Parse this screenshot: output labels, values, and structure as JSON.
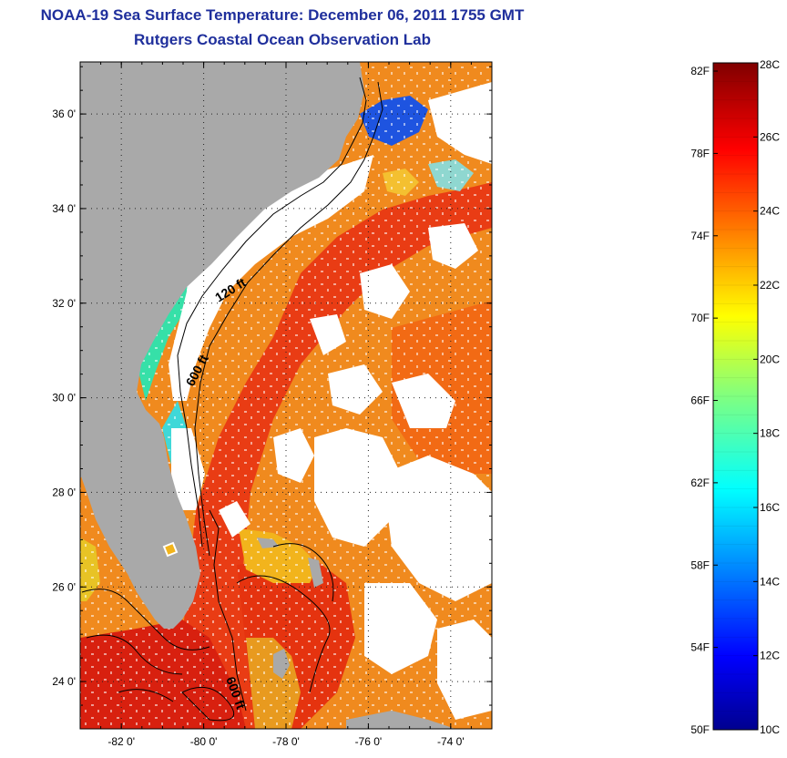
{
  "title_line1": "NOAA-19 Sea Surface Temperature:  December 06, 2011 1755 GMT",
  "title_line2": "Rutgers Coastal Ocean Observation Lab",
  "colors": {
    "land": "#a9a9a9",
    "cloud": "#ffffff",
    "title": "#1f2f9c"
  },
  "map": {
    "lat_ticks": [
      "36 0'",
      "34 0'",
      "32 0'",
      "30 0'",
      "28 0'",
      "26 0'",
      "24 0'"
    ],
    "lat_values": [
      36,
      34,
      32,
      30,
      28,
      26,
      24
    ],
    "lon_ticks": [
      "-82 0'",
      "-80 0'",
      "-78 0'",
      "-76 0'",
      "-74 0'"
    ],
    "lon_values": [
      -82,
      -80,
      -78,
      -76,
      -74
    ],
    "lat_range": [
      23.0,
      37.1
    ],
    "lon_range": [
      -83.0,
      -73.0
    ],
    "contour_labels": [
      "120 ft",
      "600 ft",
      "600 ft"
    ]
  },
  "colorbar": {
    "fahrenheit_labels": [
      "82F",
      "78F",
      "74F",
      "70F",
      "66F",
      "62F",
      "58F",
      "54F",
      "50F"
    ],
    "celsius_labels": [
      "28C",
      "26C",
      "24C",
      "22C",
      "20C",
      "18C",
      "16C",
      "14C",
      "12C",
      "10C"
    ],
    "range_c": [
      10,
      28
    ],
    "range_f": [
      50,
      82.4
    ]
  }
}
